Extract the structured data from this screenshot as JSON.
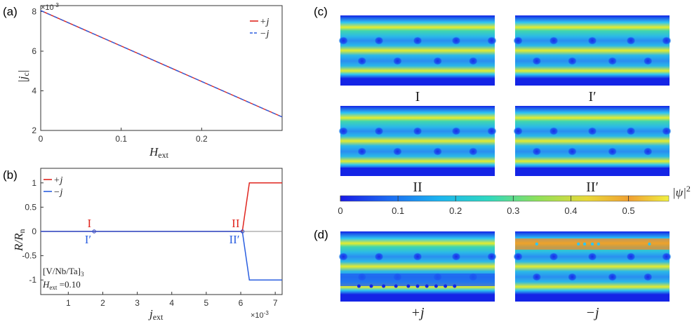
{
  "panels": {
    "a": "(a)",
    "b": "(b)",
    "c": "(c)",
    "d": "(d)"
  },
  "chart_data": [
    {
      "type": "line",
      "panel": "a",
      "xlabel": "H",
      "xlabel_sub": "ext",
      "ylabel": "|j",
      "ylabel_sub": "c",
      "ylabel_end": "|",
      "y_scale_label": "×10",
      "y_scale_exp": "-3",
      "xlim": [
        0,
        0.3
      ],
      "ylim": [
        2,
        8.3
      ],
      "y_multiplier": 0.001,
      "xticks": [
        "0",
        "0.1",
        "0.2"
      ],
      "xtick_values": [
        0,
        0.1,
        0.2
      ],
      "yticks": [
        "2",
        "4",
        "6",
        "8"
      ],
      "ytick_values": [
        2,
        4,
        6,
        8
      ],
      "legend_placement": "top-right",
      "legend": [
        "+j",
        "−j"
      ],
      "series": [
        {
          "name": "+j",
          "color": "#e0261f",
          "style": "solid",
          "x": [
            0,
            0.3
          ],
          "y": [
            8.05,
            2.68
          ]
        },
        {
          "name": "−j",
          "color": "#2b5fe0",
          "style": "dashed",
          "x": [
            0,
            0.3
          ],
          "y": [
            8.05,
            2.68
          ]
        }
      ]
    },
    {
      "type": "line",
      "panel": "b",
      "xlabel": "j",
      "xlabel_sub": "ext",
      "ylabel": "R/R",
      "ylabel_sub": "n",
      "x_scale_label": "×10",
      "x_scale_exp": "-3",
      "xlim": [
        0.2,
        7.2
      ],
      "ylim": [
        -1.3,
        1.3
      ],
      "x_multiplier": 0.001,
      "xticks": [
        "1",
        "2",
        "3",
        "4",
        "5",
        "6",
        "7"
      ],
      "xtick_values": [
        1,
        2,
        3,
        4,
        5,
        6,
        7
      ],
      "yticks": [
        "1",
        "0.5",
        "0",
        "-0.5",
        "-1"
      ],
      "ytick_values": [
        1,
        0.5,
        0,
        -0.5,
        -1
      ],
      "legend_placement": "top-left",
      "legend": [
        "+j",
        "−j"
      ],
      "series": [
        {
          "name": "+j",
          "color": "#e0261f",
          "x": [
            0.2,
            6.0,
            6.05,
            6.25,
            7.2
          ],
          "y": [
            0,
            0,
            0.02,
            1,
            1
          ]
        },
        {
          "name": "−j",
          "color": "#2b5fe0",
          "x": [
            0.2,
            6.0,
            6.05,
            6.25,
            7.2
          ],
          "y": [
            0,
            0,
            -0.02,
            -1,
            -1
          ]
        }
      ],
      "markers": [
        {
          "label": "I",
          "color": "#e0261f",
          "x": 1.75,
          "y": 0,
          "pos": "above"
        },
        {
          "label": "I′",
          "color": "#2b5fe0",
          "x": 1.75,
          "y": 0,
          "pos": "below"
        },
        {
          "label": "II",
          "color": "#e0261f",
          "x": 6.05,
          "y": 0,
          "pos": "above"
        },
        {
          "label": "II′",
          "color": "#2b5fe0",
          "x": 6.05,
          "y": 0,
          "pos": "below"
        }
      ],
      "annotation_line1": "[V/Nb/Ta]",
      "annotation_line1_sub": "3",
      "annotation_line2": "H",
      "annotation_line2_sub": "ext",
      "annotation_line2_val": " =0.10"
    }
  ],
  "maps_c": [
    {
      "label": "I"
    },
    {
      "label": "I′"
    },
    {
      "label": "II"
    },
    {
      "label": "II′"
    }
  ],
  "maps_d": [
    {
      "label": "+j"
    },
    {
      "label": "−j"
    }
  ],
  "colorbar": {
    "ticks": [
      "0",
      "0.1",
      "0.2",
      "0.3",
      "0.4",
      "0.5"
    ],
    "tick_values": [
      0,
      0.1,
      0.2,
      0.3,
      0.4,
      0.5
    ],
    "max": 0.57,
    "label": "|ψ|",
    "label_exp": "2"
  }
}
